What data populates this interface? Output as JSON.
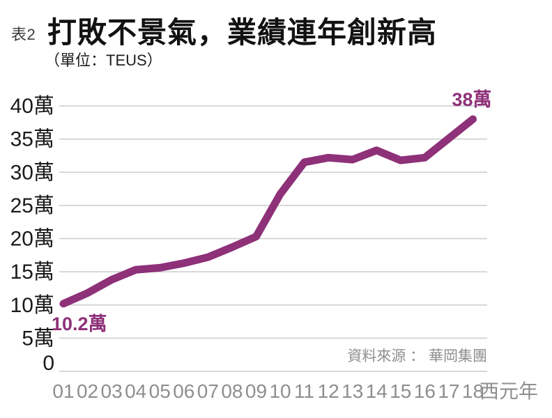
{
  "header": {
    "tag": "表2",
    "title": "打敗不景氣，業績連年創新高",
    "subtitle": "（單位：TEUS）"
  },
  "source_note": "資料來源 ： 華岡集團",
  "colors": {
    "line": "#8e3179",
    "annotation": "#8e3179",
    "grid": "#cbcbcb",
    "y_tick_text": "#1a1a1a",
    "x_tick_text": "#8e8e8e",
    "source_text": "#8e8e8e",
    "title_text": "#121212"
  },
  "chart_data": {
    "type": "line",
    "title": "打敗不景氣，業績連年創新高",
    "unit": "TEUS",
    "x": [
      "01",
      "02",
      "03",
      "04",
      "05",
      "06",
      "07",
      "08",
      "09",
      "10",
      "11",
      "12",
      "13",
      "14",
      "15",
      "16",
      "17",
      "18"
    ],
    "x_axis_suffix": "西元年",
    "values": [
      10.2,
      11.8,
      13.8,
      15.3,
      15.6,
      16.3,
      17.2,
      18.7,
      20.3,
      26.7,
      31.5,
      32.2,
      31.9,
      33.3,
      31.8,
      32.2,
      35.1,
      38
    ],
    "value_unit_label": "萬",
    "y_ticks": [
      {
        "value": 0,
        "label": "0"
      },
      {
        "value": 5,
        "label": "5萬"
      },
      {
        "value": 10,
        "label": "10萬"
      },
      {
        "value": 15,
        "label": "15萬"
      },
      {
        "value": 20,
        "label": "20萬"
      },
      {
        "value": 25,
        "label": "25萬"
      },
      {
        "value": 30,
        "label": "30萬"
      },
      {
        "value": 35,
        "label": "35萬"
      },
      {
        "value": 40,
        "label": "40萬"
      }
    ],
    "ylim": [
      0,
      40
    ],
    "grid": true,
    "legend": false,
    "annotations": [
      {
        "index": 0,
        "label": "10.2萬",
        "placement": "below-start"
      },
      {
        "index": 17,
        "label": "38萬",
        "placement": "above-end"
      }
    ]
  }
}
